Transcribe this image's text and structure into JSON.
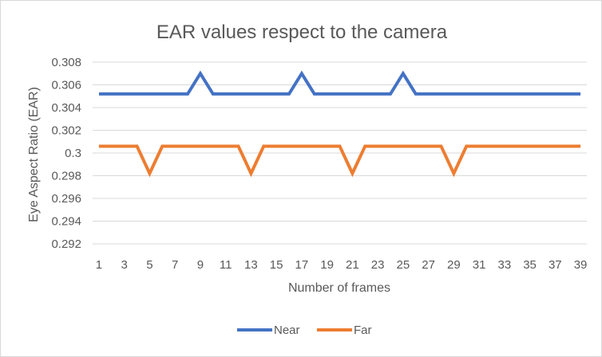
{
  "chart_data": {
    "type": "line",
    "title": "EAR values respect to the camera",
    "xlabel": "Number of frames",
    "ylabel": "Eye Aspect Ratio (EAR)",
    "x": [
      1,
      2,
      3,
      4,
      5,
      6,
      7,
      8,
      9,
      10,
      11,
      12,
      13,
      14,
      15,
      16,
      17,
      18,
      19,
      20,
      21,
      22,
      23,
      24,
      25,
      26,
      27,
      28,
      29,
      30,
      31,
      32,
      33,
      34,
      35,
      36,
      37,
      38,
      39
    ],
    "x_tick_labels": [
      "1",
      "3",
      "5",
      "7",
      "9",
      "11",
      "13",
      "15",
      "17",
      "19",
      "21",
      "23",
      "25",
      "27",
      "29",
      "31",
      "33",
      "35",
      "37",
      "39"
    ],
    "ylim": [
      0.292,
      0.308
    ],
    "y_ticks": [
      0.292,
      0.294,
      0.296,
      0.298,
      0.3,
      0.302,
      0.304,
      0.306,
      0.308
    ],
    "y_tick_labels": [
      "0.292",
      "0.294",
      "0.296",
      "0.298",
      "0.3",
      "0.302",
      "0.304",
      "0.306",
      "0.308"
    ],
    "grid": true,
    "legend_position": "bottom",
    "series": [
      {
        "name": "Near",
        "color": "#4472c4",
        "values": [
          0.3052,
          0.3052,
          0.3052,
          0.3052,
          0.3052,
          0.3052,
          0.3052,
          0.3052,
          0.307,
          0.3052,
          0.3052,
          0.3052,
          0.3052,
          0.3052,
          0.3052,
          0.3052,
          0.307,
          0.3052,
          0.3052,
          0.3052,
          0.3052,
          0.3052,
          0.3052,
          0.3052,
          0.307,
          0.3052,
          0.3052,
          0.3052,
          0.3052,
          0.3052,
          0.3052,
          0.3052,
          0.3052,
          0.3052,
          0.3052,
          0.3052,
          0.3052,
          0.3052,
          0.3052
        ]
      },
      {
        "name": "Far",
        "color": "#ed7d31",
        "values": [
          0.3006,
          0.3006,
          0.3006,
          0.3006,
          0.2982,
          0.3006,
          0.3006,
          0.3006,
          0.3006,
          0.3006,
          0.3006,
          0.3006,
          0.2982,
          0.3006,
          0.3006,
          0.3006,
          0.3006,
          0.3006,
          0.3006,
          0.3006,
          0.2982,
          0.3006,
          0.3006,
          0.3006,
          0.3006,
          0.3006,
          0.3006,
          0.3006,
          0.2982,
          0.3006,
          0.3006,
          0.3006,
          0.3006,
          0.3006,
          0.3006,
          0.3006,
          0.3006,
          0.3006,
          0.3006
        ]
      }
    ]
  }
}
